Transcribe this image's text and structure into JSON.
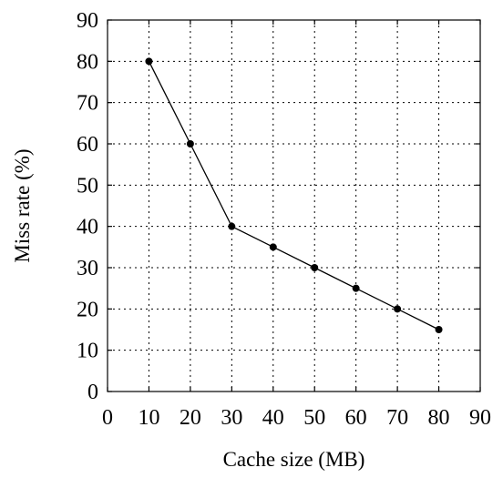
{
  "chart_data": {
    "type": "line",
    "title": "",
    "xlabel": "Cache size (MB)",
    "ylabel": "Miss rate (%)",
    "xlim": [
      0,
      90
    ],
    "ylim": [
      0,
      90
    ],
    "x_ticks": [
      0,
      10,
      20,
      30,
      40,
      50,
      60,
      70,
      80,
      90
    ],
    "y_ticks": [
      0,
      10,
      20,
      30,
      40,
      50,
      60,
      70,
      80,
      90
    ],
    "grid": true,
    "line_color": "#000000",
    "marker": "circle",
    "series": [
      {
        "x": [
          10,
          20,
          30,
          40,
          50,
          60,
          70,
          80
        ],
        "values": [
          80,
          60,
          40,
          35,
          30,
          25,
          20,
          15
        ]
      }
    ]
  }
}
